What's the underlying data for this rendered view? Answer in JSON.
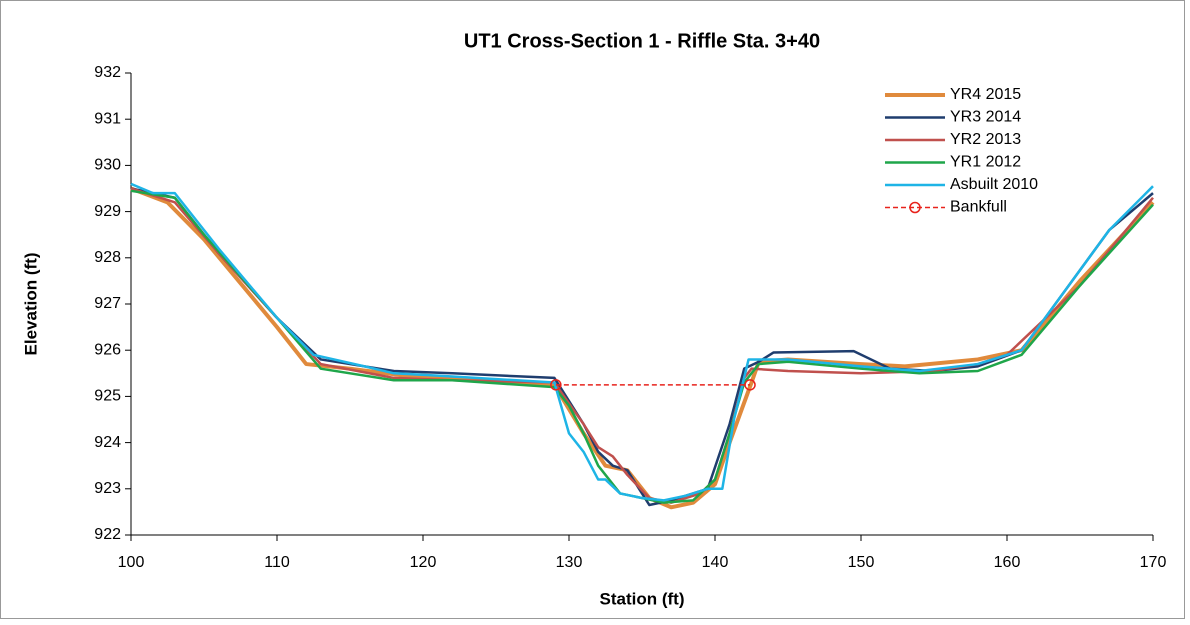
{
  "chart_data": {
    "type": "line",
    "title": "UT1 Cross-Section 1 - Riffle Sta. 3+40",
    "xlabel": "Station (ft)",
    "ylabel": "Elevation (ft)",
    "xlim": [
      100,
      170
    ],
    "xticks": [
      100,
      110,
      120,
      130,
      140,
      150,
      160,
      170
    ],
    "ylim": [
      922,
      932
    ],
    "yticks": [
      922,
      923,
      924,
      925,
      926,
      927,
      928,
      929,
      930,
      931,
      932
    ],
    "grid": false,
    "legend": "upper right",
    "series": [
      {
        "name": "YR4 2015",
        "color": "#e08a3c",
        "linewidth": 4,
        "x": [
          100,
          102.5,
          105,
          110,
          112,
          115,
          120,
          125,
          129,
          131,
          132.5,
          134,
          135.5,
          137,
          138.5,
          140,
          141,
          142.5,
          143,
          145,
          150,
          153,
          158,
          161,
          165,
          170
        ],
        "values": [
          929.5,
          929.2,
          928.4,
          926.5,
          925.7,
          925.6,
          925.4,
          925.35,
          925.25,
          924.2,
          923.5,
          923.4,
          922.8,
          922.6,
          922.7,
          923.1,
          924,
          925.3,
          925.75,
          925.8,
          925.7,
          925.65,
          925.8,
          926,
          927.5,
          929.2
        ]
      },
      {
        "name": "YR3 2014",
        "color": "#1f3d6e",
        "linewidth": 2.5,
        "x": [
          100,
          103,
          106,
          110,
          113,
          118,
          122,
          129,
          131,
          132,
          133,
          134,
          134.8,
          135.5,
          137,
          139.5,
          141,
          142,
          143,
          144,
          149.5,
          152,
          155,
          158,
          161,
          167,
          170
        ],
        "values": [
          929.5,
          929.3,
          928.1,
          926.7,
          925.8,
          925.55,
          925.5,
          925.4,
          924.4,
          923.8,
          923.5,
          923.4,
          923,
          922.65,
          922.75,
          923,
          924.4,
          925.6,
          925.75,
          925.95,
          925.98,
          925.6,
          925.55,
          925.65,
          926,
          928.6,
          929.4
        ]
      },
      {
        "name": "YR2 2013",
        "color": "#c0504d",
        "linewidth": 2.5,
        "x": [
          100,
          103,
          106,
          110,
          113,
          118,
          122,
          129,
          131,
          132,
          133,
          134,
          135.5,
          137,
          139,
          140,
          141,
          142,
          142.5,
          145,
          150,
          155,
          158,
          160,
          165,
          170
        ],
        "values": [
          929.5,
          929.2,
          928.1,
          926.7,
          925.7,
          925.4,
          925.35,
          925.3,
          924.4,
          923.9,
          923.7,
          923.3,
          922.8,
          922.7,
          922.9,
          923.2,
          924.2,
          925.4,
          925.6,
          925.55,
          925.5,
          925.55,
          925.7,
          925.9,
          927.4,
          929.3
        ]
      },
      {
        "name": "YR1 2012",
        "color": "#1fa64a",
        "linewidth": 2.5,
        "x": [
          100,
          103,
          105,
          110,
          113,
          118,
          122,
          129,
          130,
          131,
          132,
          133.5,
          135,
          136.5,
          138.5,
          140,
          141,
          142,
          143,
          145,
          150,
          154,
          158,
          161,
          165,
          170
        ],
        "values": [
          929.45,
          929.3,
          928.5,
          926.7,
          925.6,
          925.35,
          925.35,
          925.2,
          924.8,
          924.2,
          923.5,
          922.9,
          922.8,
          922.7,
          922.75,
          923.2,
          924.2,
          925.3,
          925.7,
          925.75,
          925.6,
          925.5,
          925.55,
          925.9,
          927.4,
          929.15
        ]
      },
      {
        "name": "Asbuilt 2010",
        "color": "#1eb4e6",
        "linewidth": 2.5,
        "x": [
          100,
          101.5,
          103,
          106,
          110,
          112.5,
          116,
          118,
          121,
          129,
          130,
          131,
          132,
          132.5,
          133.5,
          135,
          136.5,
          138,
          139.5,
          140.5,
          141.3,
          142.3,
          145,
          150,
          154,
          158,
          161,
          167,
          170
        ],
        "values": [
          929.6,
          929.4,
          929.4,
          928.2,
          926.7,
          925.9,
          925.65,
          925.5,
          925.45,
          925.3,
          924.2,
          923.8,
          923.2,
          923.2,
          922.9,
          922.8,
          922.75,
          922.85,
          923,
          923,
          924.5,
          925.8,
          925.8,
          925.65,
          925.55,
          925.7,
          926,
          928.6,
          929.55
        ]
      },
      {
        "name": "Bankfull",
        "color": "#e8231c",
        "linewidth": 1.5,
        "dashed": true,
        "marker": "circle",
        "x": [
          129.1,
          142.4
        ],
        "values": [
          925.25,
          925.25
        ]
      }
    ]
  }
}
